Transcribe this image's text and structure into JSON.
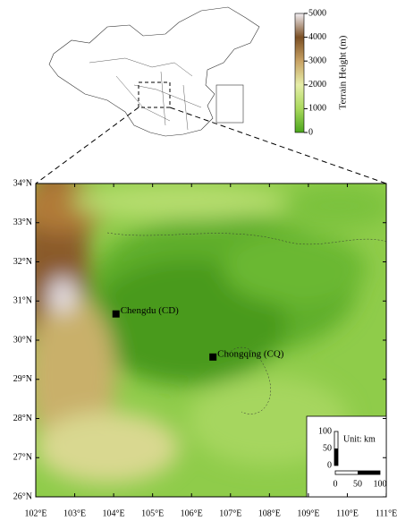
{
  "colorbar": {
    "label": "Terrain Height (m)",
    "range": [
      0,
      5000
    ],
    "ticks": [
      0,
      1000,
      2000,
      3000,
      4000,
      5000
    ]
  },
  "map": {
    "xlim": [
      102,
      111
    ],
    "ylim": [
      26,
      34
    ],
    "xticks": [
      {
        "value": 102,
        "label": "102°E"
      },
      {
        "value": 103,
        "label": "103°E"
      },
      {
        "value": 104,
        "label": "104°E"
      },
      {
        "value": 105,
        "label": "105°E"
      },
      {
        "value": 106,
        "label": "106°E"
      },
      {
        "value": 107,
        "label": "107°E"
      },
      {
        "value": 108,
        "label": "108°E"
      },
      {
        "value": 109,
        "label": "109°E"
      },
      {
        "value": 110,
        "label": "110°E"
      },
      {
        "value": 111,
        "label": "111°E"
      }
    ],
    "yticks": [
      {
        "value": 26,
        "label": "26°N"
      },
      {
        "value": 27,
        "label": "27°N"
      },
      {
        "value": 28,
        "label": "28°N"
      },
      {
        "value": 29,
        "label": "29°N"
      },
      {
        "value": 30,
        "label": "30°N"
      },
      {
        "value": 31,
        "label": "31°N"
      },
      {
        "value": 32,
        "label": "32°N"
      },
      {
        "value": 33,
        "label": "33°N"
      },
      {
        "value": 34,
        "label": "34°N"
      }
    ],
    "cities": [
      {
        "name": "Chengdu (CD)",
        "lon": 104.06,
        "lat": 30.67
      },
      {
        "name": "Chongqing (CQ)",
        "lon": 106.55,
        "lat": 29.57
      }
    ]
  },
  "scale": {
    "unit": "Unit: km",
    "vticks": [
      0,
      50,
      100
    ],
    "hticks": [
      0,
      50,
      100
    ]
  }
}
